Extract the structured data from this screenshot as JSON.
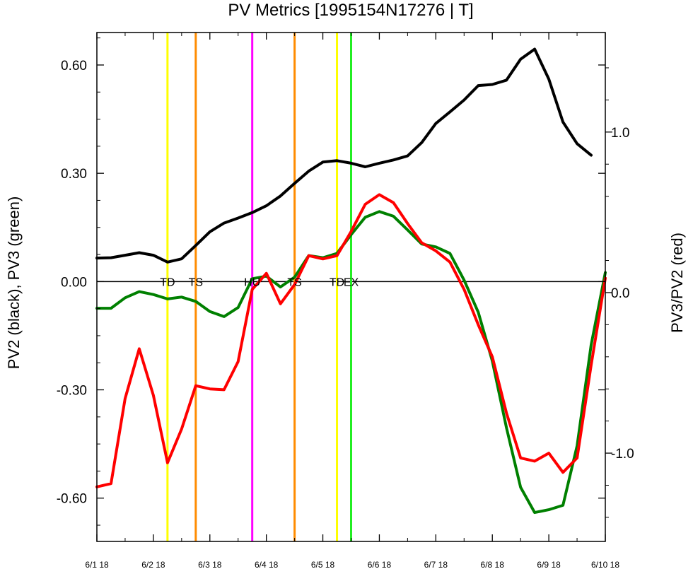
{
  "chart_data": {
    "type": "line",
    "title": "PV Metrics [1995154N17276 | T]",
    "ylabel_left": "PV2 (black), PV3 (green)",
    "ylabel_right": "PV3/PV2 (red)",
    "x_ticks": [
      {
        "label": "6/1 18",
        "day": 0
      },
      {
        "label": "6/2 18",
        "day": 1
      },
      {
        "label": "6/3 18",
        "day": 2
      },
      {
        "label": "6/4 18",
        "day": 3
      },
      {
        "label": "6/5 18",
        "day": 4
      },
      {
        "label": "6/6 18",
        "day": 5
      },
      {
        "label": "6/7 18",
        "day": 6
      },
      {
        "label": "6/8 18",
        "day": 7
      },
      {
        "label": "6/9 18",
        "day": 8
      },
      {
        "label": "6/10 18",
        "day": 9
      }
    ],
    "xlim": [
      0,
      9
    ],
    "ylim_left": [
      -0.72,
      0.69
    ],
    "ylim_right": [
      -1.55,
      1.62
    ],
    "y_ticks_left": [
      {
        "label": "0.60",
        "value": 0.6
      },
      {
        "label": "0.30",
        "value": 0.3
      },
      {
        "label": "0.00",
        "value": 0.0
      },
      {
        "label": "-0.30",
        "value": -0.3
      },
      {
        "label": "-0.60",
        "value": -0.6
      }
    ],
    "y_minor_left": [
      -0.675,
      -0.525,
      -0.45,
      -0.375,
      -0.225,
      -0.15,
      -0.075,
      0.075,
      0.15,
      0.225,
      0.375,
      0.45,
      0.525,
      0.675
    ],
    "y_ticks_right": [
      {
        "label": "1.0",
        "value": 1.0
      },
      {
        "label": "0.0",
        "value": 0.0
      },
      {
        "label": "-1.0",
        "value": -1.0
      }
    ],
    "y_minor_right": [
      -1.4,
      -1.2,
      -0.8,
      -0.6,
      -0.4,
      -0.2,
      0.2,
      0.4,
      0.6,
      0.8,
      1.2,
      1.4
    ],
    "series": [
      {
        "axis": "left",
        "color": "#000000",
        "x": [
          0,
          0.25,
          0.5,
          0.75,
          1,
          1.25,
          1.5,
          1.75,
          2,
          2.25,
          2.5,
          2.75,
          3,
          3.25,
          3.5,
          3.75,
          4,
          4.25,
          4.5,
          4.75,
          5,
          5.25,
          5.5,
          5.75,
          6,
          6.25,
          6.5,
          6.75,
          7,
          7.25,
          7.5,
          7.75,
          8,
          8.25,
          8.5,
          8.75,
          9
        ],
        "values": [
          0.065,
          0.066,
          0.073,
          0.08,
          0.073,
          0.054,
          0.063,
          0.1,
          0.138,
          0.162,
          0.176,
          0.191,
          0.21,
          0.237,
          0.272,
          0.306,
          0.331,
          0.335,
          0.328,
          0.318,
          0.328,
          0.337,
          0.348,
          0.385,
          0.438,
          0.47,
          0.503,
          0.543,
          0.546,
          0.558,
          0.616,
          0.644,
          0.561,
          0.442,
          0.382,
          0.35,
          null
        ]
      },
      {
        "axis": "left",
        "color": "#008000",
        "x": [
          0,
          0.25,
          0.5,
          0.75,
          1,
          1.25,
          1.5,
          1.75,
          2,
          2.25,
          2.5,
          2.75,
          3,
          3.25,
          3.5,
          3.75,
          4,
          4.25,
          4.5,
          4.75,
          5,
          5.25,
          5.5,
          5.75,
          6,
          6.25,
          6.5,
          6.75,
          7,
          7.25,
          7.5,
          7.75,
          8,
          8.25,
          8.5,
          8.75,
          9
        ],
        "values": [
          -0.074,
          -0.074,
          -0.045,
          -0.028,
          -0.036,
          -0.048,
          -0.043,
          -0.055,
          -0.083,
          -0.097,
          -0.072,
          0.008,
          0.015,
          -0.015,
          0.012,
          0.072,
          0.066,
          0.078,
          0.13,
          0.178,
          0.194,
          0.181,
          0.143,
          0.104,
          0.096,
          0.078,
          0.004,
          -0.085,
          -0.22,
          -0.405,
          -0.57,
          -0.64,
          -0.632,
          -0.62,
          -0.455,
          -0.175,
          0.025
        ]
      },
      {
        "axis": "right",
        "color": "#ff0000",
        "x": [
          0,
          0.25,
          0.5,
          0.75,
          1,
          1.25,
          1.5,
          1.75,
          2,
          2.25,
          2.5,
          2.75,
          3,
          3.25,
          3.5,
          3.75,
          4,
          4.25,
          4.5,
          4.75,
          5,
          5.25,
          5.5,
          5.75,
          6,
          6.25,
          6.5,
          6.75,
          7,
          7.25,
          7.5,
          7.75,
          8,
          8.25,
          8.5,
          8.75,
          9
        ],
        "values": [
          -1.21,
          -1.19,
          -0.66,
          -0.35,
          -0.64,
          -1.06,
          -0.85,
          -0.58,
          -0.6,
          -0.605,
          -0.43,
          0.02,
          0.12,
          -0.07,
          0.05,
          0.23,
          0.21,
          0.23,
          0.38,
          0.55,
          0.61,
          0.56,
          0.43,
          0.31,
          0.26,
          0.19,
          0.02,
          -0.2,
          -0.4,
          -0.75,
          -1.03,
          -1.05,
          -1.0,
          -1.12,
          -1.03,
          -0.45,
          0.09
        ]
      }
    ],
    "events": [
      {
        "label": "TD",
        "day": 1.25,
        "color": "#ffff00"
      },
      {
        "label": "TS",
        "day": 1.75,
        "color": "#ff8c00"
      },
      {
        "label": "HU",
        "day": 2.75,
        "color": "#ff00ff"
      },
      {
        "label": "TS",
        "day": 3.5,
        "color": "#ff8c00"
      },
      {
        "label": "TD",
        "day": 4.25,
        "color": "#ffff00"
      },
      {
        "label": "EX",
        "day": 4.5,
        "color": "#22ee22"
      }
    ],
    "zero_line": true,
    "grid": false
  }
}
